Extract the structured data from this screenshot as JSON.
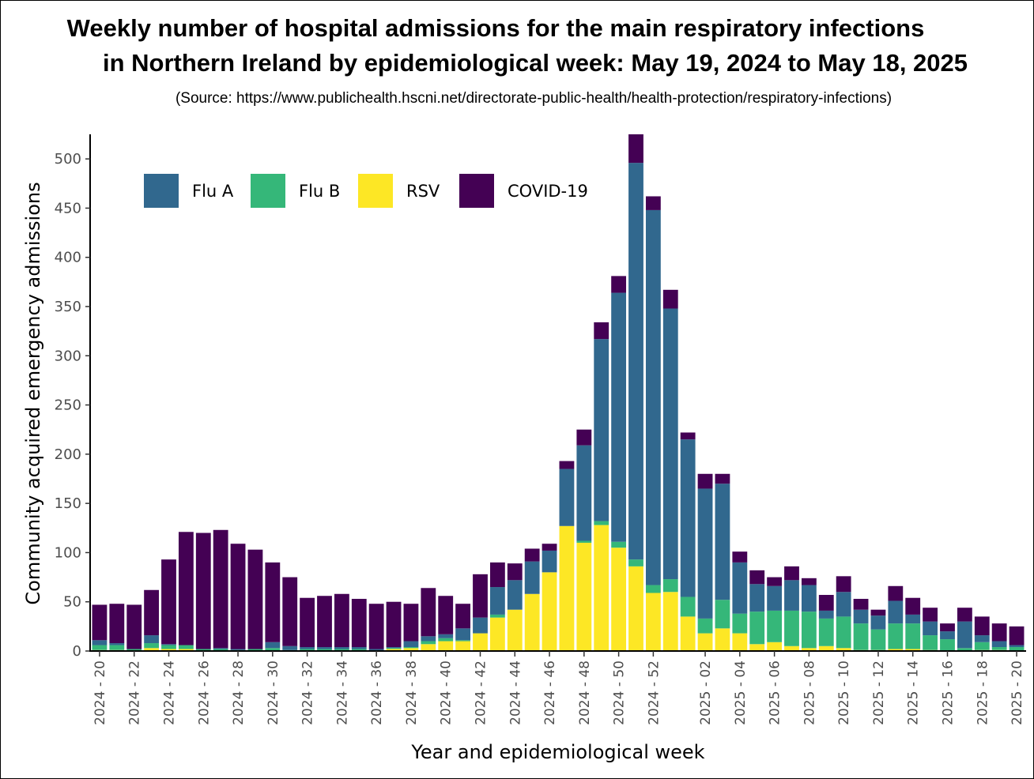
{
  "title_line1": "Weekly number of hospital admissions for the main respiratory infections",
  "title_line2": "in Northern Ireland by epidemiological week: May 19, 2024 to May 18, 2025",
  "source": "(Source: https://www.publichealth.hscni.net/directorate-public-health/health-protection/respiratory-infections)",
  "chart_data": {
    "type": "bar",
    "stacked": true,
    "xlabel": "Year and epidemiological week",
    "ylabel": "Community acquired emergency admissions",
    "ylim": [
      0,
      525
    ],
    "yticks": [
      0,
      50,
      100,
      150,
      200,
      250,
      300,
      350,
      400,
      450,
      500
    ],
    "legend_position": "top-left",
    "grid": false,
    "categories": [
      "2024 - 20",
      "2024 - 21",
      "2024 - 22",
      "2024 - 23",
      "2024 - 24",
      "2024 - 25",
      "2024 - 26",
      "2024 - 27",
      "2024 - 28",
      "2024 - 29",
      "2024 - 30",
      "2024 - 31",
      "2024 - 32",
      "2024 - 33",
      "2024 - 34",
      "2024 - 35",
      "2024 - 36",
      "2024 - 37",
      "2024 - 38",
      "2024 - 39",
      "2024 - 40",
      "2024 - 41",
      "2024 - 42",
      "2024 - 43",
      "2024 - 44",
      "2024 - 45",
      "2024 - 46",
      "2024 - 47",
      "2024 - 48",
      "2024 - 49",
      "2024 - 50",
      "2024 - 51",
      "2024 - 52",
      "2024 - 53",
      "2025 - 01",
      "2025 - 02",
      "2025 - 03",
      "2025 - 04",
      "2025 - 05",
      "2025 - 06",
      "2025 - 07",
      "2025 - 08",
      "2025 - 09",
      "2025 - 10",
      "2025 - 11",
      "2025 - 12",
      "2025 - 13",
      "2025 - 14",
      "2025 - 15",
      "2025 - 16",
      "2025 - 17",
      "2025 - 18",
      "2025 - 19",
      "2025 - 20"
    ],
    "labeled_categories": [
      "2024 - 20",
      "2024 - 22",
      "2024 - 24",
      "2024 - 26",
      "2024 - 28",
      "2024 - 30",
      "2024 - 32",
      "2024 - 34",
      "2024 - 36",
      "2024 - 38",
      "2024 - 40",
      "2024 - 42",
      "2024 - 44",
      "2024 - 46",
      "2024 - 48",
      "2024 - 50",
      "2024 - 52",
      "2025 - 02",
      "2025 - 04",
      "2025 - 06",
      "2025 - 08",
      "2025 - 10",
      "2025 - 12",
      "2025 - 14",
      "2025 - 16",
      "2025 - 18",
      "2025 - 20"
    ],
    "series": [
      {
        "name": "RSV",
        "color": "#FDE725",
        "values": [
          1,
          1,
          0,
          3,
          2,
          2,
          0,
          0,
          0,
          0,
          0,
          0,
          0,
          0,
          0,
          0,
          0,
          2,
          3,
          7,
          10,
          10,
          18,
          34,
          42,
          58,
          80,
          127,
          110,
          128,
          105,
          86,
          59,
          60,
          35,
          18,
          23,
          18,
          7,
          9,
          5,
          3,
          5,
          3,
          1,
          1,
          2,
          2,
          1,
          0,
          0,
          1,
          1,
          0
        ]
      },
      {
        "name": "Flu B",
        "color": "#35B779",
        "values": [
          5,
          5,
          2,
          5,
          4,
          4,
          2,
          2,
          1,
          2,
          3,
          1,
          2,
          2,
          2,
          2,
          0,
          1,
          1,
          3,
          3,
          1,
          0,
          3,
          0,
          0,
          0,
          0,
          2,
          4,
          6,
          7,
          8,
          13,
          20,
          15,
          29,
          20,
          33,
          32,
          36,
          37,
          28,
          32,
          27,
          21,
          26,
          26,
          15,
          12,
          3,
          8,
          3,
          4
        ]
      },
      {
        "name": "Flu A",
        "color": "#31688E",
        "values": [
          5,
          2,
          0,
          8,
          1,
          0,
          0,
          1,
          1,
          0,
          6,
          4,
          2,
          2,
          2,
          2,
          2,
          1,
          6,
          5,
          4,
          12,
          16,
          28,
          30,
          33,
          22,
          58,
          97,
          185,
          253,
          403,
          381,
          275,
          160,
          132,
          118,
          52,
          28,
          25,
          31,
          27,
          8,
          25,
          14,
          14,
          23,
          9,
          14,
          8,
          27,
          7,
          6,
          2
        ]
      },
      {
        "name": "COVID-19",
        "color": "#440154",
        "values": [
          36,
          40,
          45,
          46,
          86,
          115,
          118,
          120,
          107,
          101,
          81,
          70,
          50,
          52,
          54,
          49,
          46,
          46,
          38,
          49,
          39,
          25,
          44,
          25,
          17,
          13,
          7,
          8,
          16,
          17,
          17,
          29,
          14,
          19,
          7,
          15,
          10,
          11,
          14,
          9,
          14,
          7,
          16,
          16,
          11,
          6,
          15,
          17,
          14,
          8,
          14,
          19,
          18,
          19
        ]
      }
    ]
  }
}
